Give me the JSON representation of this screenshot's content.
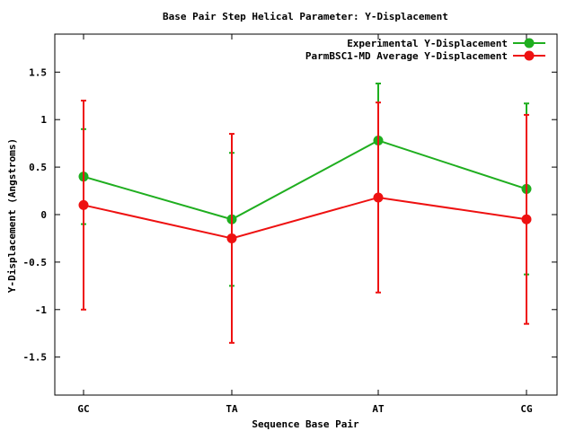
{
  "chart_data": {
    "type": "line",
    "title": "Base Pair Step Helical Parameter: Y-Displacement",
    "xlabel": "Sequence Base Pair",
    "ylabel": "Y-Displacement (Angstroms)",
    "categories": [
      "GC",
      "TA",
      "AT",
      "CG"
    ],
    "ylim": [
      -1.9,
      1.9
    ],
    "yticks": [
      1.5,
      1,
      0.5,
      0,
      -0.5,
      -1,
      -1.5
    ],
    "ytick_labels": [
      "1.5",
      "1",
      "0.5",
      "0",
      "-0.5",
      "-1",
      "-1.5"
    ],
    "grid": false,
    "legend_position": "top-right",
    "series": [
      {
        "name": "Experimental Y-Displacement",
        "color": "#1fae1f",
        "values": [
          0.4,
          -0.05,
          0.78,
          0.27
        ],
        "error": [
          0.5,
          0.7,
          0.6,
          0.9
        ]
      },
      {
        "name": "ParmBSC1-MD Average Y-Displacement",
        "color": "#ee1111",
        "values": [
          0.1,
          -0.25,
          0.18,
          -0.05
        ],
        "error": [
          1.1,
          1.1,
          1.0,
          1.1
        ]
      }
    ]
  }
}
